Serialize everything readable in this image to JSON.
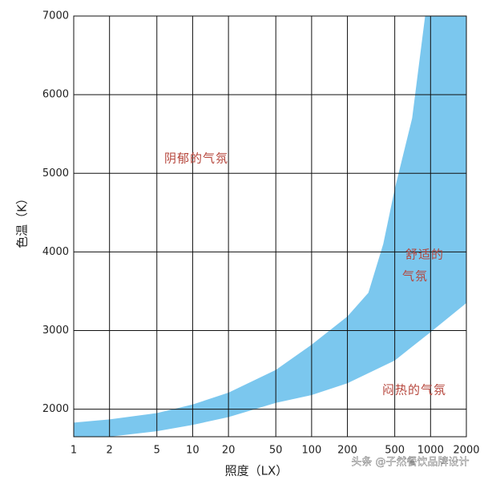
{
  "chart_data": {
    "type": "band",
    "x_label": "照度（LX）",
    "y_label": "色温（K）",
    "log_x": true,
    "xlim": [
      1,
      2000
    ],
    "xticks": [
      1,
      2,
      5,
      10,
      20,
      50,
      100,
      200,
      500,
      1000,
      2000
    ],
    "ylim": [
      1650,
      7000
    ],
    "yticks": [
      2000,
      3000,
      4000,
      5000,
      6000,
      7000
    ],
    "grid": true,
    "color": "#7bc7ee",
    "series": [
      {
        "x": [
          1,
          2,
          5,
          10,
          20,
          50,
          100,
          200,
          300,
          400,
          500,
          700,
          900
        ],
        "values": [
          1830,
          1870,
          1950,
          2060,
          2210,
          2500,
          2820,
          3180,
          3480,
          4100,
          4800,
          5700,
          7000
        ]
      },
      {
        "x": [
          2,
          5,
          10,
          20,
          50,
          100,
          200,
          500,
          1000,
          2000
        ],
        "values": [
          1650,
          1720,
          1800,
          1900,
          2080,
          2180,
          2330,
          2620,
          2980,
          3350
        ]
      }
    ],
    "annotations": [
      [
        "阴郁的气氛"
      ],
      [
        "舒适的",
        "气氛"
      ],
      [
        "闷热的气氛"
      ]
    ],
    "watermark": "头条 @子然餐饮品牌设计"
  }
}
